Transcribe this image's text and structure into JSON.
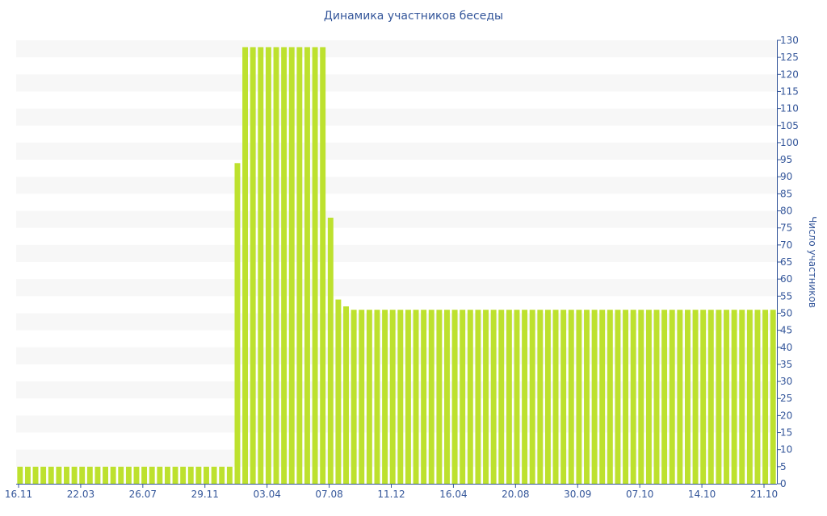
{
  "chart_data": {
    "type": "bar",
    "title": "Динамика участников беседы",
    "ylabel": "Число участников",
    "xlabel": "",
    "ylim": [
      0,
      130
    ],
    "y_ticks": [
      0,
      5,
      10,
      15,
      20,
      25,
      30,
      35,
      40,
      45,
      50,
      55,
      60,
      65,
      70,
      75,
      80,
      85,
      90,
      95,
      100,
      105,
      110,
      115,
      120,
      125,
      130
    ],
    "y_axis_position": "right",
    "grid": "alternating horizontal bands",
    "x_tick_labels": [
      "16.11",
      "22.03",
      "26.07",
      "29.11",
      "03.04",
      "07.08",
      "11.12",
      "16.04",
      "20.08",
      "30.09",
      "07.10",
      "14.10",
      "21.10"
    ],
    "bar_color": "#bde12e",
    "values": [
      5,
      5,
      5,
      5,
      5,
      5,
      5,
      5,
      5,
      5,
      5,
      5,
      5,
      5,
      5,
      5,
      5,
      5,
      5,
      5,
      5,
      5,
      5,
      5,
      5,
      5,
      5,
      5,
      94,
      128,
      128,
      128,
      128,
      128,
      128,
      128,
      128,
      128,
      128,
      128,
      78,
      54,
      52,
      51,
      51,
      51,
      51,
      51,
      51,
      51,
      51,
      51,
      51,
      51,
      51,
      51,
      51,
      51,
      51,
      51,
      51,
      51,
      51,
      51,
      51,
      51,
      51,
      51,
      51,
      51,
      51,
      51,
      51,
      51,
      51,
      51,
      51,
      51,
      51,
      51,
      51,
      51,
      51,
      51,
      51,
      51,
      51,
      51,
      51,
      51,
      51,
      51,
      51,
      51,
      51,
      51,
      51,
      51
    ]
  }
}
